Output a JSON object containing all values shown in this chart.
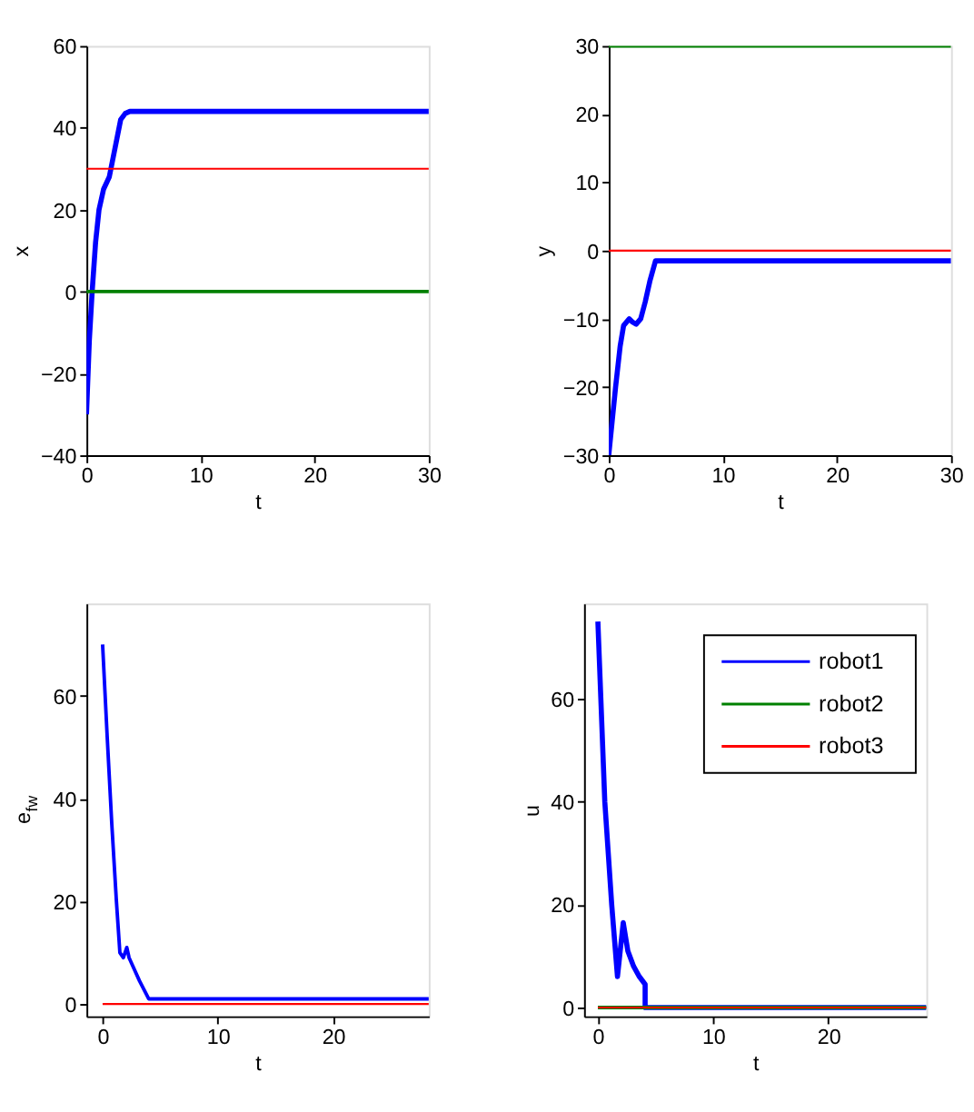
{
  "chart_data": [
    {
      "type": "line",
      "xlabel": "t",
      "ylabel": "x",
      "xlim": [
        0,
        30
      ],
      "ylim": [
        -40,
        60
      ],
      "xticks": [
        0,
        10,
        20,
        30
      ],
      "yticks": [
        -40,
        -20,
        0,
        20,
        40,
        60
      ],
      "grid": false,
      "legend": false,
      "line_style": "solid",
      "marker": "none",
      "series": [
        {
          "color": "#0000ff",
          "x": [
            0,
            0.25,
            0.5,
            0.8,
            1.1,
            1.5,
            2,
            2.5,
            3,
            3.4,
            3.8,
            4.5,
            30
          ],
          "values": [
            -30,
            -12,
            0,
            12,
            20,
            25,
            28,
            35,
            42,
            43.5,
            44,
            44,
            44
          ]
        },
        {
          "color": "#008000",
          "x": [
            0,
            30
          ],
          "values": [
            0,
            0
          ]
        },
        {
          "color": "#ff0000",
          "x": [
            0,
            30
          ],
          "values": [
            30,
            30
          ]
        }
      ]
    },
    {
      "type": "line",
      "xlabel": "t",
      "ylabel": "y",
      "xlim": [
        0,
        30
      ],
      "ylim": [
        -30,
        30
      ],
      "xticks": [
        0,
        10,
        20,
        30
      ],
      "yticks": [
        -30,
        -20,
        -10,
        0,
        10,
        20,
        30
      ],
      "grid": false,
      "legend": false,
      "line_style": "solid",
      "marker": "none",
      "series": [
        {
          "color": "#0000ff",
          "x": [
            0,
            0.3,
            0.6,
            1,
            1.3,
            1.8,
            2.1,
            2.4,
            2.8,
            3.2,
            3.6,
            4.1,
            30
          ],
          "values": [
            -30,
            -25,
            -20,
            -14,
            -11,
            -10,
            -10.5,
            -10.8,
            -10,
            -7.5,
            -4.5,
            -1.5,
            -1.5
          ]
        },
        {
          "color": "#008000",
          "x": [
            0,
            30
          ],
          "values": [
            30,
            30
          ]
        },
        {
          "color": "#ff0000",
          "x": [
            0,
            30
          ],
          "values": [
            0,
            0
          ]
        }
      ]
    },
    {
      "type": "line",
      "xlabel": "t",
      "ylabel": "e$_{fw}$",
      "xlim": [
        -1.4,
        28.3
      ],
      "ylim": [
        -2.4,
        78
      ],
      "xticks": [
        0,
        10,
        20
      ],
      "yticks": [
        0,
        20,
        40,
        60
      ],
      "grid": false,
      "legend": false,
      "line_style": "solid",
      "marker": "none",
      "series": [
        {
          "color": "#0000ff",
          "x": [
            0,
            0.4,
            0.8,
            1.2,
            1.5,
            1.8,
            2.1,
            2.3,
            2.6,
            3.2,
            4,
            28.3
          ],
          "values": [
            70,
            52,
            35,
            20,
            10,
            9,
            11,
            9,
            7.5,
            4.5,
            1,
            1
          ]
        },
        {
          "color": "#ff0000",
          "x": [
            0,
            28.3
          ],
          "values": [
            0,
            0
          ]
        }
      ]
    },
    {
      "type": "line",
      "xlabel": "t",
      "ylabel": "u",
      "xlim": [
        -1.2,
        28.5
      ],
      "ylim": [
        -1.7,
        78.5
      ],
      "xticks": [
        0,
        10,
        20
      ],
      "yticks": [
        0,
        20,
        40,
        60
      ],
      "grid": false,
      "legend": "top right",
      "line_style": "solid",
      "marker": "none",
      "series": [
        {
          "name": "robot1",
          "color": "#0000ff",
          "x": [
            0,
            0.6,
            1.2,
            1.7,
            2.2,
            2.6,
            3.1,
            3.6,
            4.1,
            4.1,
            28.5
          ],
          "values": [
            75,
            40,
            20,
            6,
            16.5,
            11,
            8,
            6,
            4.5,
            0,
            0
          ]
        },
        {
          "name": "robot2",
          "color": "#008000",
          "x": [
            0,
            28.5
          ],
          "values": [
            0,
            0
          ]
        },
        {
          "name": "robot3",
          "color": "#ff0000",
          "x": [
            0,
            28.5
          ],
          "values": [
            0,
            0
          ]
        }
      ]
    }
  ]
}
